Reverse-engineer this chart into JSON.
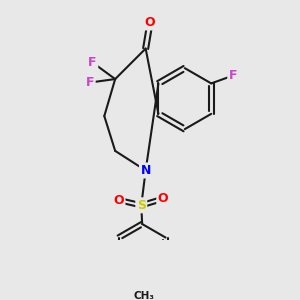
{
  "background_color": "#e8e8e8",
  "bond_color": "#1a1a1a",
  "bond_width": 1.5,
  "atom_colors": {
    "F": "#cc44cc",
    "O": "#ff0000",
    "N": "#0000ff",
    "S": "#cccc00",
    "C": "#1a1a1a"
  },
  "font_size_atom": 9
}
